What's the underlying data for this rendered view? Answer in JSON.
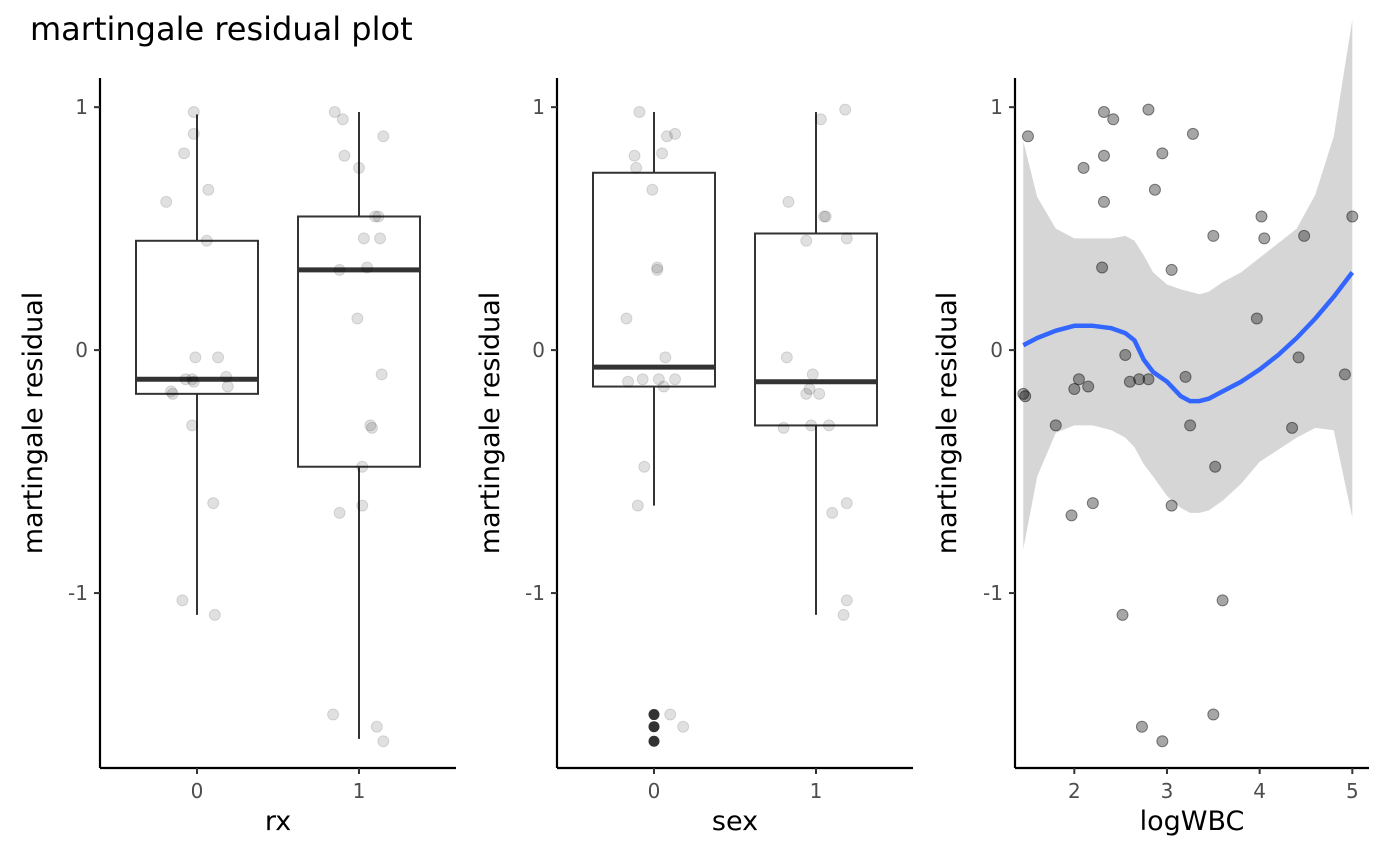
{
  "chart_data": {
    "title": "martingale residual plot",
    "panels": [
      {
        "type": "box",
        "xlabel": "rx",
        "ylabel": "martingale residual",
        "categories": [
          "0",
          "1"
        ],
        "y_ticks": [
          -1,
          0,
          1
        ],
        "y_tick_labels": [
          "-1",
          "0",
          "1"
        ],
        "ylim": [
          -1.72,
          1.12
        ],
        "boxes": [
          {
            "category": "0",
            "q1": -0.18,
            "median": -0.12,
            "q3": 0.45,
            "whisker_low": -1.09,
            "whisker_high": 0.97,
            "outliers": []
          },
          {
            "category": "1",
            "q1": -0.48,
            "median": 0.33,
            "q3": 0.55,
            "whisker_low": -1.6,
            "whisker_high": 0.98,
            "outliers": []
          }
        ],
        "jitter_points": [
          {
            "x": "0",
            "dx": -0.19,
            "y": 0.61
          },
          {
            "x": "0",
            "dx": -0.02,
            "y": 0.98
          },
          {
            "x": "0",
            "dx": -0.02,
            "y": 0.89
          },
          {
            "x": "0",
            "dx": -0.08,
            "y": 0.81
          },
          {
            "x": "0",
            "dx": 0.07,
            "y": 0.66
          },
          {
            "x": "0",
            "dx": 0.06,
            "y": 0.45
          },
          {
            "x": "0",
            "dx": -0.01,
            "y": -0.03
          },
          {
            "x": "0",
            "dx": 0.13,
            "y": -0.03
          },
          {
            "x": "0",
            "dx": -0.07,
            "y": -0.12
          },
          {
            "x": "0",
            "dx": -0.03,
            "y": -0.12
          },
          {
            "x": "0",
            "dx": -0.02,
            "y": -0.13
          },
          {
            "x": "0",
            "dx": 0.18,
            "y": -0.11
          },
          {
            "x": "0",
            "dx": 0.19,
            "y": -0.15
          },
          {
            "x": "0",
            "dx": -0.16,
            "y": -0.17
          },
          {
            "x": "0",
            "dx": -0.15,
            "y": -0.18
          },
          {
            "x": "0",
            "dx": -0.03,
            "y": -0.31
          },
          {
            "x": "0",
            "dx": 0.1,
            "y": -0.63
          },
          {
            "x": "0",
            "dx": -0.09,
            "y": -1.03
          },
          {
            "x": "0",
            "dx": 0.11,
            "y": -1.09
          },
          {
            "x": "1",
            "dx": -0.15,
            "y": 0.98
          },
          {
            "x": "1",
            "dx": -0.1,
            "y": 0.95
          },
          {
            "x": "1",
            "dx": 0.15,
            "y": 0.88
          },
          {
            "x": "1",
            "dx": -0.09,
            "y": 0.8
          },
          {
            "x": "1",
            "dx": 0.0,
            "y": 0.75
          },
          {
            "x": "1",
            "dx": 0.1,
            "y": 0.55
          },
          {
            "x": "1",
            "dx": 0.12,
            "y": 0.55
          },
          {
            "x": "1",
            "dx": 0.03,
            "y": 0.46
          },
          {
            "x": "1",
            "dx": 0.13,
            "y": 0.46
          },
          {
            "x": "1",
            "dx": 0.05,
            "y": 0.34
          },
          {
            "x": "1",
            "dx": -0.12,
            "y": 0.33
          },
          {
            "x": "1",
            "dx": -0.01,
            "y": 0.13
          },
          {
            "x": "1",
            "dx": 0.14,
            "y": -0.1
          },
          {
            "x": "1",
            "dx": 0.07,
            "y": -0.31
          },
          {
            "x": "1",
            "dx": 0.08,
            "y": -0.32
          },
          {
            "x": "1",
            "dx": 0.02,
            "y": -0.48
          },
          {
            "x": "1",
            "dx": 0.02,
            "y": -0.64
          },
          {
            "x": "1",
            "dx": -0.12,
            "y": -0.67
          },
          {
            "x": "1",
            "dx": -0.16,
            "y": -1.5
          },
          {
            "x": "1",
            "dx": 0.11,
            "y": -1.55
          },
          {
            "x": "1",
            "dx": 0.15,
            "y": -1.61
          }
        ]
      },
      {
        "type": "box",
        "xlabel": "sex",
        "ylabel": "martingale residual",
        "categories": [
          "0",
          "1"
        ],
        "y_ticks": [
          -1,
          0,
          1
        ],
        "y_tick_labels": [
          "-1",
          "0",
          "1"
        ],
        "ylim": [
          -1.72,
          1.12
        ],
        "boxes": [
          {
            "category": "0",
            "q1": -0.15,
            "median": -0.07,
            "q3": 0.73,
            "whisker_low": -0.64,
            "whisker_high": 0.98,
            "outliers": [
              -1.5,
              -1.55,
              -1.61
            ]
          },
          {
            "category": "1",
            "q1": -0.31,
            "median": -0.13,
            "q3": 0.48,
            "whisker_low": -1.09,
            "whisker_high": 0.98,
            "outliers": []
          }
        ],
        "jitter_points": [
          {
            "x": "0",
            "dx": -0.09,
            "y": 0.98
          },
          {
            "x": "0",
            "dx": 0.13,
            "y": 0.89
          },
          {
            "x": "0",
            "dx": 0.08,
            "y": 0.88
          },
          {
            "x": "0",
            "dx": 0.05,
            "y": 0.81
          },
          {
            "x": "0",
            "dx": -0.12,
            "y": 0.8
          },
          {
            "x": "0",
            "dx": -0.11,
            "y": 0.75
          },
          {
            "x": "0",
            "dx": -0.01,
            "y": 0.66
          },
          {
            "x": "0",
            "dx": 0.02,
            "y": 0.34
          },
          {
            "x": "0",
            "dx": 0.02,
            "y": 0.33
          },
          {
            "x": "0",
            "dx": -0.17,
            "y": 0.13
          },
          {
            "x": "0",
            "dx": 0.07,
            "y": -0.03
          },
          {
            "x": "0",
            "dx": -0.16,
            "y": -0.13
          },
          {
            "x": "0",
            "dx": -0.07,
            "y": -0.12
          },
          {
            "x": "0",
            "dx": 0.03,
            "y": -0.12
          },
          {
            "x": "0",
            "dx": 0.13,
            "y": -0.12
          },
          {
            "x": "0",
            "dx": 0.06,
            "y": -0.15
          },
          {
            "x": "0",
            "dx": -0.06,
            "y": -0.48
          },
          {
            "x": "0",
            "dx": -0.1,
            "y": -0.64
          },
          {
            "x": "0",
            "dx": 0.1,
            "y": -1.5
          },
          {
            "x": "0",
            "dx": 0.18,
            "y": -1.55
          },
          {
            "x": "1",
            "dx": -0.17,
            "y": 0.61
          },
          {
            "x": "1",
            "dx": 0.03,
            "y": 0.95
          },
          {
            "x": "1",
            "dx": 0.18,
            "y": 0.99
          },
          {
            "x": "1",
            "dx": 0.06,
            "y": 0.55
          },
          {
            "x": "1",
            "dx": 0.05,
            "y": 0.55
          },
          {
            "x": "1",
            "dx": 0.19,
            "y": 0.46
          },
          {
            "x": "1",
            "dx": -0.06,
            "y": 0.45
          },
          {
            "x": "1",
            "dx": -0.18,
            "y": -0.03
          },
          {
            "x": "1",
            "dx": -0.02,
            "y": -0.1
          },
          {
            "x": "1",
            "dx": -0.04,
            "y": -0.16
          },
          {
            "x": "1",
            "dx": -0.06,
            "y": -0.18
          },
          {
            "x": "1",
            "dx": 0.02,
            "y": -0.18
          },
          {
            "x": "1",
            "dx": -0.2,
            "y": -0.32
          },
          {
            "x": "1",
            "dx": -0.03,
            "y": -0.31
          },
          {
            "x": "1",
            "dx": 0.08,
            "y": -0.31
          },
          {
            "x": "1",
            "dx": 0.19,
            "y": -0.63
          },
          {
            "x": "1",
            "dx": 0.1,
            "y": -0.67
          },
          {
            "x": "1",
            "dx": 0.19,
            "y": -1.03
          },
          {
            "x": "1",
            "dx": 0.17,
            "y": -1.09
          }
        ]
      },
      {
        "type": "scatter",
        "xlabel": "logWBC",
        "ylabel": "martingale residual",
        "x_ticks": [
          2,
          3,
          4,
          5
        ],
        "x_tick_labels": [
          "2",
          "3",
          "4",
          "5"
        ],
        "y_ticks": [
          -1,
          0,
          1
        ],
        "y_tick_labels": [
          "-1",
          "0",
          "1"
        ],
        "xlim": [
          1.36,
          5.18
        ],
        "ylim": [
          -1.72,
          1.12
        ],
        "points": [
          [
            1.45,
            -0.18
          ],
          [
            1.47,
            -0.19
          ],
          [
            1.5,
            0.88
          ],
          [
            1.8,
            -0.31
          ],
          [
            1.97,
            -0.68
          ],
          [
            2.0,
            -0.16
          ],
          [
            2.05,
            -0.12
          ],
          [
            2.1,
            0.75
          ],
          [
            2.15,
            -0.15
          ],
          [
            2.2,
            -0.63
          ],
          [
            2.3,
            0.34
          ],
          [
            2.32,
            0.61
          ],
          [
            2.32,
            0.8
          ],
          [
            2.32,
            0.98
          ],
          [
            2.42,
            0.95
          ],
          [
            2.52,
            -1.09
          ],
          [
            2.55,
            -0.02
          ],
          [
            2.6,
            -0.13
          ],
          [
            2.7,
            -0.12
          ],
          [
            2.73,
            -1.55
          ],
          [
            2.8,
            -0.12
          ],
          [
            2.8,
            0.99
          ],
          [
            2.87,
            0.66
          ],
          [
            2.95,
            0.81
          ],
          [
            2.95,
            -1.61
          ],
          [
            3.05,
            0.33
          ],
          [
            3.05,
            -0.64
          ],
          [
            3.2,
            -0.11
          ],
          [
            3.25,
            -0.31
          ],
          [
            3.28,
            0.89
          ],
          [
            3.5,
            0.47
          ],
          [
            3.5,
            -1.5
          ],
          [
            3.52,
            -0.48
          ],
          [
            3.6,
            -1.03
          ],
          [
            3.97,
            0.13
          ],
          [
            4.02,
            0.55
          ],
          [
            4.05,
            0.46
          ],
          [
            4.35,
            -0.32
          ],
          [
            4.42,
            -0.03
          ],
          [
            4.48,
            0.47
          ],
          [
            4.92,
            -0.1
          ],
          [
            5.0,
            0.55
          ]
        ],
        "smooth": {
          "method": "loess",
          "color": "#3366ff",
          "x": [
            1.45,
            1.6,
            1.8,
            2.0,
            2.2,
            2.4,
            2.55,
            2.65,
            2.75,
            2.85,
            3.0,
            3.15,
            3.25,
            3.35,
            3.45,
            3.6,
            3.8,
            4.0,
            4.2,
            4.4,
            4.6,
            4.8,
            5.0
          ],
          "y": [
            0.02,
            0.05,
            0.08,
            0.1,
            0.1,
            0.09,
            0.07,
            0.04,
            -0.04,
            -0.09,
            -0.13,
            -0.19,
            -0.21,
            -0.21,
            -0.2,
            -0.17,
            -0.13,
            -0.08,
            -0.02,
            0.05,
            0.13,
            0.22,
            0.32
          ],
          "ci_lower": [
            -0.82,
            -0.52,
            -0.34,
            -0.31,
            -0.31,
            -0.33,
            -0.36,
            -0.4,
            -0.47,
            -0.52,
            -0.6,
            -0.65,
            -0.67,
            -0.67,
            -0.66,
            -0.62,
            -0.55,
            -0.46,
            -0.41,
            -0.36,
            -0.32,
            -0.33,
            -0.69
          ],
          "ci_upper": [
            0.86,
            0.63,
            0.5,
            0.46,
            0.46,
            0.46,
            0.47,
            0.45,
            0.39,
            0.32,
            0.27,
            0.25,
            0.24,
            0.23,
            0.24,
            0.28,
            0.32,
            0.38,
            0.44,
            0.5,
            0.64,
            0.88,
            1.36
          ]
        }
      }
    ]
  }
}
